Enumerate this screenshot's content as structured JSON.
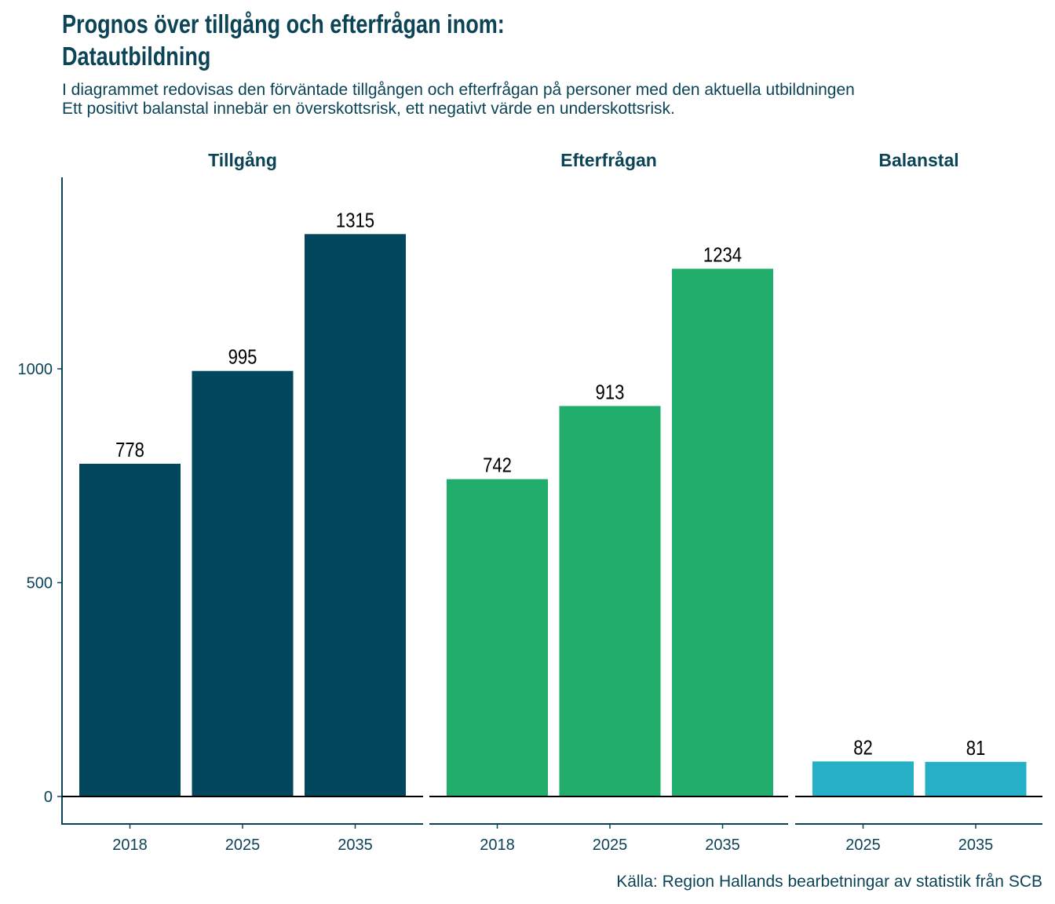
{
  "title_line1": "Prognos över tillgång och efterfrågan inom:",
  "title_line2": "Datautbildning",
  "subtitle_line1": "I diagrammet redovisas den förväntade tillgången och efterfrågan på personer med den aktuella utbildningen",
  "subtitle_line2": "Ett positivt balanstal innebär en överskottsrisk, ett negativt värde en underskottsrisk.",
  "caption": "Källa: Region Hallands bearbetningar av statistik från SCB",
  "chart_data": {
    "type": "bar",
    "ylim": [
      -65,
      1400
    ],
    "yticks": [
      0,
      500,
      1000
    ],
    "ytick_labels": [
      "0",
      "500",
      "1000"
    ],
    "grid": false,
    "panels": [
      {
        "name": "Tillgång",
        "color": "#02475e",
        "categories": [
          "2018",
          "2025",
          "2035"
        ],
        "values": [
          778,
          995,
          1315
        ]
      },
      {
        "name": "Efterfrågan",
        "color": "#21ad6c",
        "categories": [
          "2018",
          "2025",
          "2035"
        ],
        "values": [
          742,
          913,
          1234
        ]
      },
      {
        "name": "Balanstal",
        "color": "#26b0c8",
        "categories": [
          "2025",
          "2035"
        ],
        "values": [
          82,
          81
        ]
      }
    ]
  }
}
